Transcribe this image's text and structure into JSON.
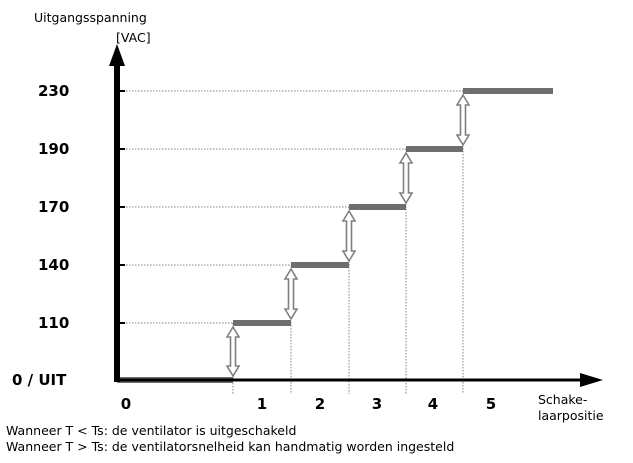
{
  "chart_data": {
    "type": "line",
    "title": "",
    "ylabel_line1": "Uitgangsspanning",
    "ylabel_line2": "[VAC]",
    "xlabel_line1": "Schake-",
    "xlabel_line2": "laarpositie",
    "y_levels": [
      0,
      110,
      140,
      170,
      190,
      230
    ],
    "y_tick_labels": [
      "0  /  UIT",
      "110",
      "140",
      "170",
      "190",
      "230"
    ],
    "x_tick_labels": [
      "0",
      "1",
      "2",
      "3",
      "4",
      "5"
    ],
    "steps": [
      {
        "position": "0",
        "value": 0
      },
      {
        "position": "1",
        "value": 110
      },
      {
        "position": "2",
        "value": 140
      },
      {
        "position": "3",
        "value": 170
      },
      {
        "position": "4",
        "value": 190
      },
      {
        "position": "5",
        "value": 230
      }
    ],
    "adjustable_range_arrows": true,
    "grid": false,
    "colors": {
      "step": "#6e6e6e",
      "axis": "#000000",
      "guide": "#808080",
      "arrow": "#808080"
    }
  },
  "notes": [
    "Wanneer T < Ts: de ventilator is uitgeschakeld",
    "Wanneer T > Ts: de ventilatorsnelheid kan handmatig worden ingesteld"
  ]
}
